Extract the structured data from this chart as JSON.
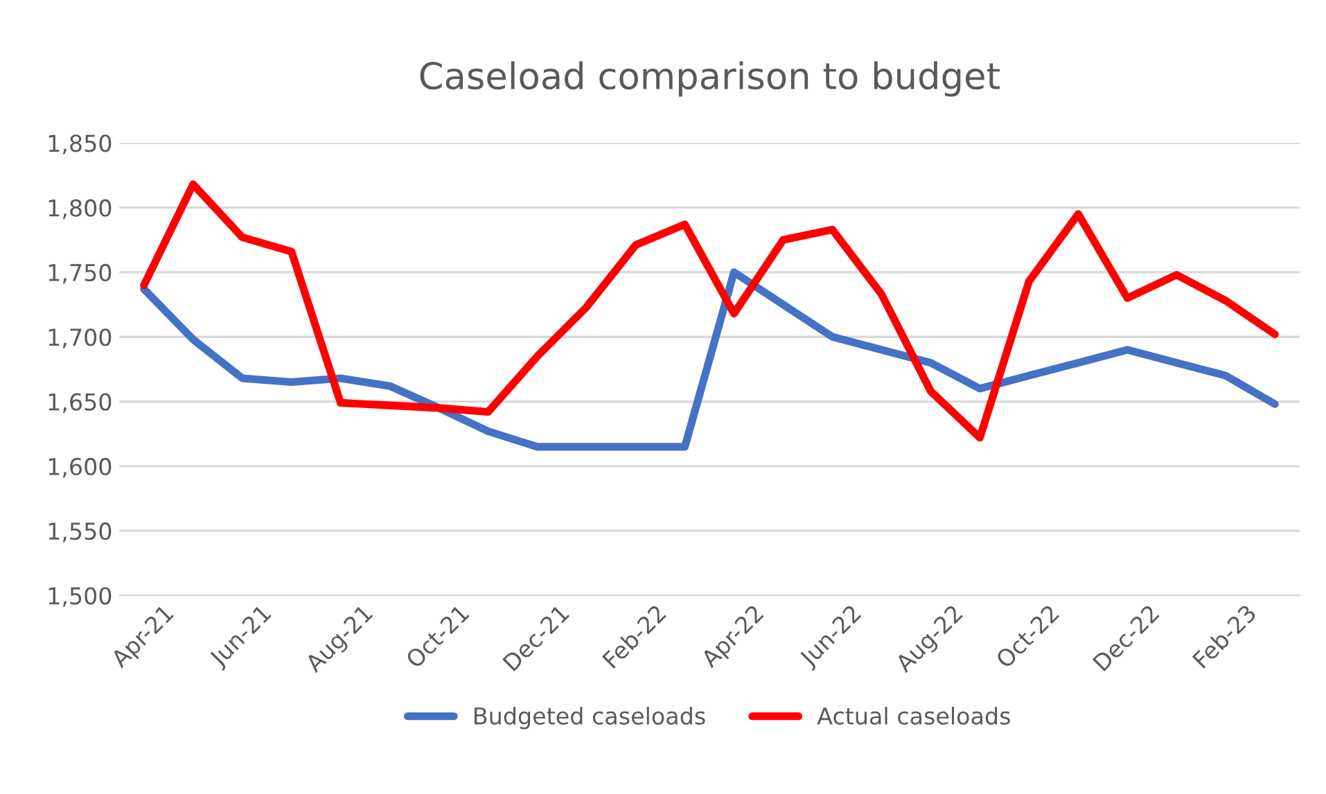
{
  "chart_data": {
    "type": "line",
    "title": "Caseload comparison to budget",
    "categories": [
      "Apr-21",
      null,
      "Jun-21",
      null,
      "Aug-21",
      null,
      "Oct-21",
      null,
      "Dec-21",
      null,
      "Feb-22",
      null,
      "Apr-22",
      null,
      "Jun-22",
      null,
      "Aug-22",
      null,
      "Oct-22",
      null,
      "Dec-22",
      null,
      "Feb-23",
      null
    ],
    "series": [
      {
        "name": "Budgeted caseloads",
        "color": "#4472c4",
        "values": [
          1737,
          1698,
          1668,
          1665,
          1668,
          1662,
          1645,
          1627,
          1615,
          1615,
          1615,
          1615,
          1750,
          1725,
          1700,
          1690,
          1680,
          1660,
          1670,
          1680,
          1690,
          1680,
          1670,
          1648
        ]
      },
      {
        "name": "Actual caseloads",
        "color": "#ff0000",
        "values": [
          1740,
          1818,
          1777,
          1766,
          1649,
          1647,
          1645,
          1642,
          1685,
          1723,
          1771,
          1787,
          1718,
          1775,
          1783,
          1733,
          1658,
          1622,
          1743,
          1795,
          1730,
          1748,
          1728,
          1702
        ]
      }
    ],
    "ylim": [
      1500,
      1850
    ],
    "yticks": [
      {
        "value": 1500,
        "label": "1,500"
      },
      {
        "value": 1550,
        "label": "1,550"
      },
      {
        "value": 1600,
        "label": "1,600"
      },
      {
        "value": 1650,
        "label": "1,650"
      },
      {
        "value": 1700,
        "label": "1,700"
      },
      {
        "value": 1750,
        "label": "1,750"
      },
      {
        "value": 1800,
        "label": "1,800"
      },
      {
        "value": 1850,
        "label": "1,850"
      }
    ],
    "grid": "y",
    "legend": "bottom",
    "marker": "none",
    "line_style": "solid"
  }
}
